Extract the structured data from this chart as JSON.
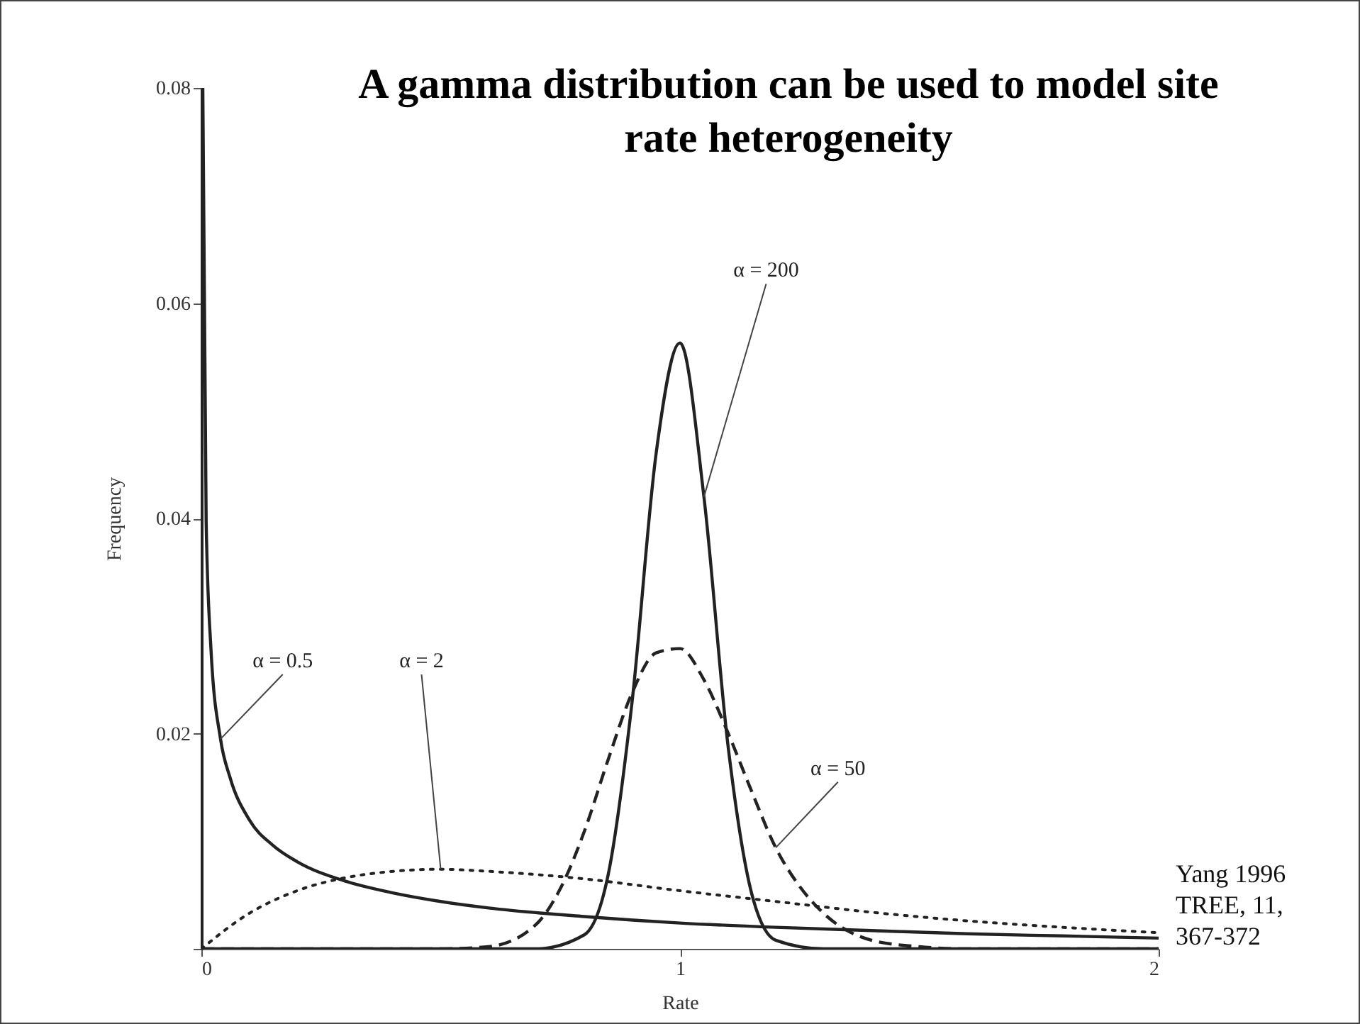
{
  "chart_data": {
    "type": "line",
    "title": "A gamma distribution can be used to model site rate heterogeneity",
    "xlabel": "Rate",
    "ylabel": "Frequency",
    "annotations": [
      "Yang 1996 TREE, 11, 367-372"
    ],
    "xlim": [
      0,
      2
    ],
    "ylim": [
      0,
      0.08
    ],
    "xticks": [
      0,
      1,
      2
    ],
    "yticks": [
      {
        "value": 0,
        "label": null
      },
      0.02,
      0.04,
      0.06,
      0.08
    ],
    "series": [
      {
        "name": "α = 0.5",
        "color": "#222222",
        "line_style": "solid",
        "x": [
          0.003,
          0.01,
          0.02,
          0.04,
          0.06,
          0.1,
          0.15,
          0.2,
          0.3,
          0.4,
          0.5,
          0.6,
          0.8,
          1.0,
          1.2,
          1.4,
          1.6,
          1.8,
          2.0
        ],
        "values": [
          0.08,
          0.0397,
          0.0279,
          0.0195,
          0.0159,
          0.012,
          0.0096,
          0.0081,
          0.0063,
          0.0052,
          0.0044,
          0.0038,
          0.003,
          0.0024,
          0.002,
          0.0017,
          0.0014,
          0.0012,
          0.001
        ]
      },
      {
        "name": "α = 2",
        "color": "#222222",
        "line_style": "dotted",
        "x": [
          0,
          0.1,
          0.2,
          0.3,
          0.4,
          0.5,
          0.6,
          0.8,
          1.0,
          1.2,
          1.4,
          1.6,
          1.8,
          2.0
        ],
        "values": [
          0,
          0.0033,
          0.0054,
          0.0066,
          0.0072,
          0.0074,
          0.0072,
          0.0065,
          0.0054,
          0.0044,
          0.0034,
          0.0026,
          0.002,
          0.0015
        ]
      },
      {
        "name": "α = 50",
        "color": "#222222",
        "line_style": "dashed",
        "x": [
          0,
          0.5,
          0.6,
          0.7,
          0.75,
          0.8,
          0.85,
          0.9,
          0.95,
          1.0,
          1.05,
          1.1,
          1.15,
          1.2,
          1.25,
          1.3,
          1.4,
          1.5,
          1.6,
          2.0
        ],
        "values": [
          0,
          0,
          0.0002,
          0.0023,
          0.0056,
          0.0109,
          0.0176,
          0.0238,
          0.0275,
          0.0279,
          0.025,
          0.0201,
          0.0146,
          0.0094,
          0.0058,
          0.0033,
          0.0008,
          0.0002,
          0,
          0
        ]
      },
      {
        "name": "α = 200",
        "color": "#222222",
        "line_style": "solid",
        "x": [
          0,
          0.7,
          0.8,
          0.85,
          0.9,
          0.95,
          1.0,
          1.05,
          1.1,
          1.15,
          1.2,
          1.3,
          2.0
        ],
        "values": [
          0,
          0,
          0.0013,
          0.0069,
          0.023,
          0.046,
          0.0563,
          0.042,
          0.019,
          0.0051,
          0.0008,
          0,
          0
        ]
      }
    ]
  }
}
